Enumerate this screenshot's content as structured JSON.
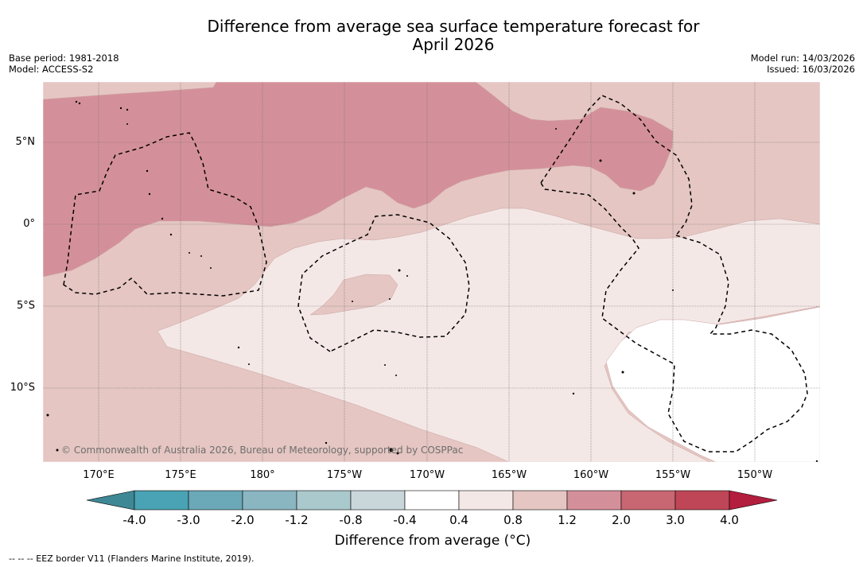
{
  "title": {
    "line1": "Difference from average sea surface temperature forecast for",
    "line2": "April 2026"
  },
  "meta": {
    "base_period": "Base period: 1981-2018",
    "model": "Model: ACCESS-S2",
    "model_run": "Model run: 14/03/2026",
    "issued": "Issued: 16/03/2026"
  },
  "map": {
    "longitude_labels": [
      "170°E",
      "175°E",
      "180°",
      "175°W",
      "170°W",
      "165°W",
      "160°W",
      "155°W",
      "150°W"
    ],
    "latitude_labels": [
      "5°N",
      "0°",
      "5°S",
      "10°S"
    ],
    "copyright": "© Commonwealth of Australia 2026, Bureau of Meteorology, supported by COSPPac",
    "shading_colors": {
      "band_1_2_to_2_0": "#d4909a",
      "band_0_8_to_1_2": "#e5c6c2",
      "band_0_4_to_0_8": "#f4e8e6",
      "band_m0_4_to_0_4": "#ffffff"
    }
  },
  "colorbar": {
    "title": "Difference from average (°C)",
    "tick_labels": [
      "-4.0",
      "-3.0",
      "-2.0",
      "-1.2",
      "-0.8",
      "-0.4",
      "0.4",
      "0.8",
      "1.2",
      "2.0",
      "3.0",
      "4.0"
    ],
    "colors": [
      "#3e8895",
      "#4aa3b4",
      "#6ba8b8",
      "#8ab6c2",
      "#a9c9cd",
      "#c9d7db",
      "#ffffff",
      "#f4e8e6",
      "#e5c6c2",
      "#d4909a",
      "#c86672",
      "#be4656",
      "#b31d3e"
    ]
  },
  "footnote": "--  --  -- EEZ border V11 (Flanders Marine Institute, 2019)."
}
